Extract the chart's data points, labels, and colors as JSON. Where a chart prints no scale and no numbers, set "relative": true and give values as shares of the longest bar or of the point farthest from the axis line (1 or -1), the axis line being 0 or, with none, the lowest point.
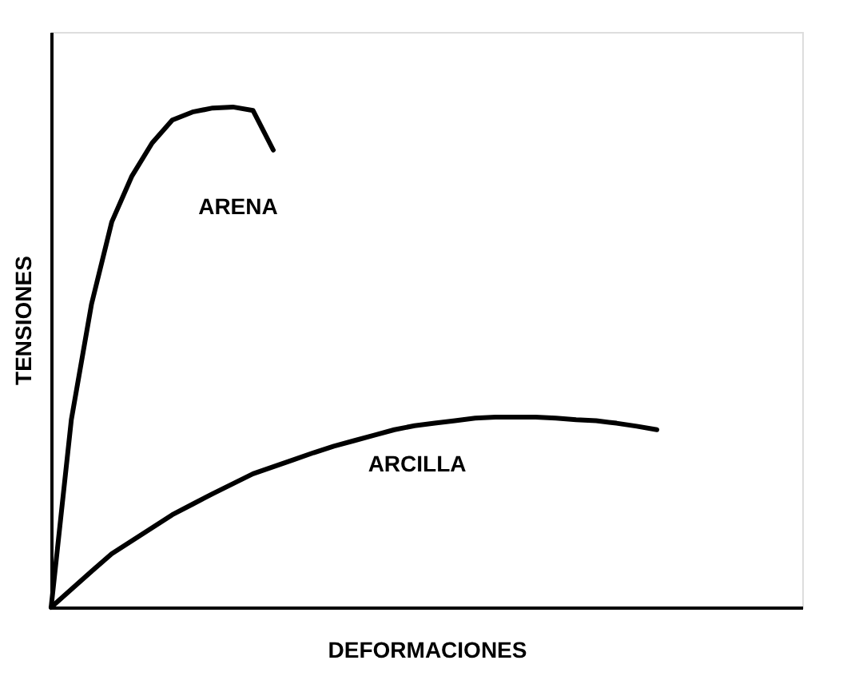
{
  "chart_data": {
    "type": "line",
    "relative": true,
    "xlabel": "DEFORMACIONES",
    "ylabel": "TENSIONES",
    "tick_labels": false,
    "grid": false,
    "legend": false,
    "marker": "none",
    "line_style": "solid",
    "categories": [
      null,
      null,
      null,
      null,
      null,
      null,
      null,
      null,
      null,
      null,
      null,
      null,
      null,
      null,
      null,
      null,
      null,
      null,
      null,
      null,
      null,
      null,
      null,
      null,
      null,
      null,
      null,
      null,
      null,
      null,
      null
    ],
    "series": [
      {
        "name": "ARENA",
        "color": "#000000",
        "values": [
          0,
          0.375,
          0.606,
          0.77,
          0.862,
          0.928,
          0.974,
          0.99,
          0.998,
          1,
          0.993,
          0.914,
          null,
          null,
          null,
          null,
          null,
          null,
          null,
          null,
          null,
          null,
          null,
          null,
          null,
          null,
          null,
          null,
          null,
          null,
          null
        ]
      },
      {
        "name": "ARCILLA",
        "color": "#000000",
        "values": [
          0,
          0.036,
          0.072,
          0.107,
          0.133,
          0.159,
          0.185,
          0.206,
          0.227,
          0.247,
          0.267,
          0.281,
          0.295,
          0.309,
          0.322,
          0.333,
          0.344,
          0.355,
          0.363,
          0.368,
          0.373,
          0.378,
          0.38,
          0.38,
          0.38,
          0.378,
          0.375,
          0.373,
          0.368,
          0.362,
          0.355
        ]
      }
    ]
  }
}
